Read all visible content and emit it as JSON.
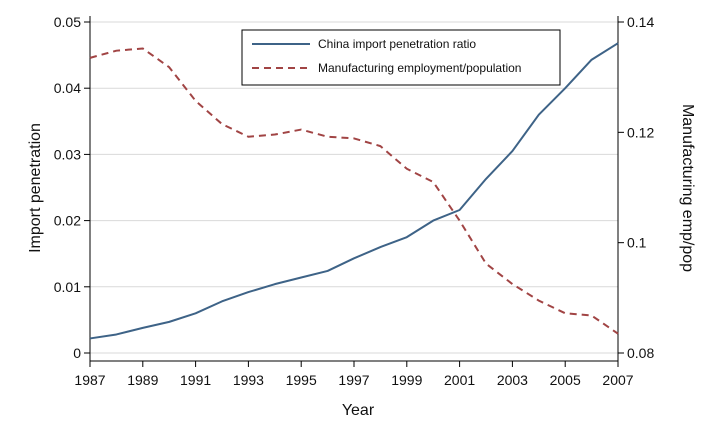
{
  "chart_data": {
    "type": "line",
    "title": "",
    "xlabel": "Year",
    "ylabel_left": "Import penetration",
    "ylabel_right": "Manufacturing emp/pop",
    "x": [
      1987,
      1988,
      1989,
      1990,
      1991,
      1992,
      1993,
      1994,
      1995,
      1996,
      1997,
      1998,
      1999,
      2000,
      2001,
      2002,
      2003,
      2004,
      2005,
      2006,
      2007
    ],
    "x_ticks": [
      "1987",
      "1989",
      "1991",
      "1993",
      "1995",
      "1997",
      "1999",
      "2001",
      "2003",
      "2005",
      "2007"
    ],
    "y_left_ticks": [
      "0",
      "0.01",
      "0.02",
      "0.03",
      "0.04",
      "0.05"
    ],
    "y_right_ticks": [
      "0.08",
      "0.1",
      "0.12",
      "0.14"
    ],
    "ylim_left": [
      0,
      0.05
    ],
    "ylim_right": [
      0.08,
      0.14
    ],
    "xlim": [
      1987,
      2007
    ],
    "grid": true,
    "legend_position": "top-right",
    "series": [
      {
        "name": "China import penetration ratio",
        "axis": "left",
        "style": "solid",
        "color": "#3e6387",
        "values": [
          0.0022,
          0.0028,
          0.0038,
          0.0047,
          0.006,
          0.0078,
          0.0092,
          0.0104,
          0.0114,
          0.0124,
          0.0143,
          0.016,
          0.0175,
          0.02,
          0.0216,
          0.0263,
          0.0305,
          0.036,
          0.04,
          0.0443,
          0.0468
        ]
      },
      {
        "name": "Manufacturing employment/population",
        "axis": "right",
        "style": "dashed",
        "color": "#a14444",
        "values": [
          0.1335,
          0.1348,
          0.1352,
          0.1318,
          0.1257,
          0.1215,
          0.1192,
          0.1196,
          0.1205,
          0.1192,
          0.1189,
          0.1175,
          0.1134,
          0.111,
          0.104,
          0.0962,
          0.0925,
          0.0895,
          0.0872,
          0.0868,
          0.0835
        ]
      }
    ]
  }
}
